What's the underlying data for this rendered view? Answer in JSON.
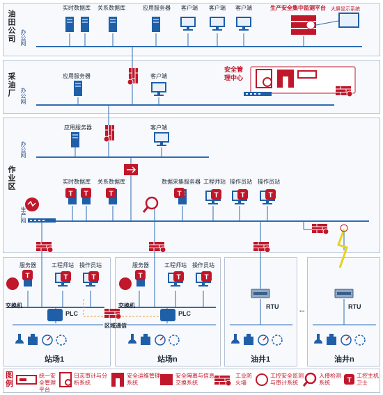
{
  "sections": {
    "oilfield": "油田公司",
    "oil_plant": "采油厂",
    "operation_area": "作业区"
  },
  "net_labels": {
    "office_net": "办公网",
    "production_net": "生产网"
  },
  "devices": {
    "realtime_db": "实时数据库",
    "relational_db": "关系数据库",
    "app_server": "应用服务器",
    "client": "客户端",
    "data_collect_server": "数据采集服务器",
    "engineer_station": "工程师站",
    "operator_station": "操作员站",
    "server": "服务器",
    "switch": "交换机",
    "plc": "PLC",
    "rtu": "RTU",
    "regional_comm": "区域通信"
  },
  "platform": {
    "title": "生产安全集中监测平台",
    "screen": "大屏显示系统"
  },
  "security_center": "安全管理中心",
  "sites": {
    "site1": "站场1",
    "siten": "站场n",
    "well1": "油井1",
    "welln": "油井n",
    "dots": "..."
  },
  "legend": {
    "title": "图例",
    "items": [
      "统一安全管理平台",
      "日志审计与分析系统",
      "安全运维管理系统",
      "安全隔离与信息交换系统",
      "工业防火墙",
      "工控安全监测与审计系统",
      "入侵检测系统",
      "工控主机卫士"
    ]
  },
  "colors": {
    "accent": "#c0172b",
    "network": "#2d6cb5",
    "device": "#1f5fa8"
  }
}
